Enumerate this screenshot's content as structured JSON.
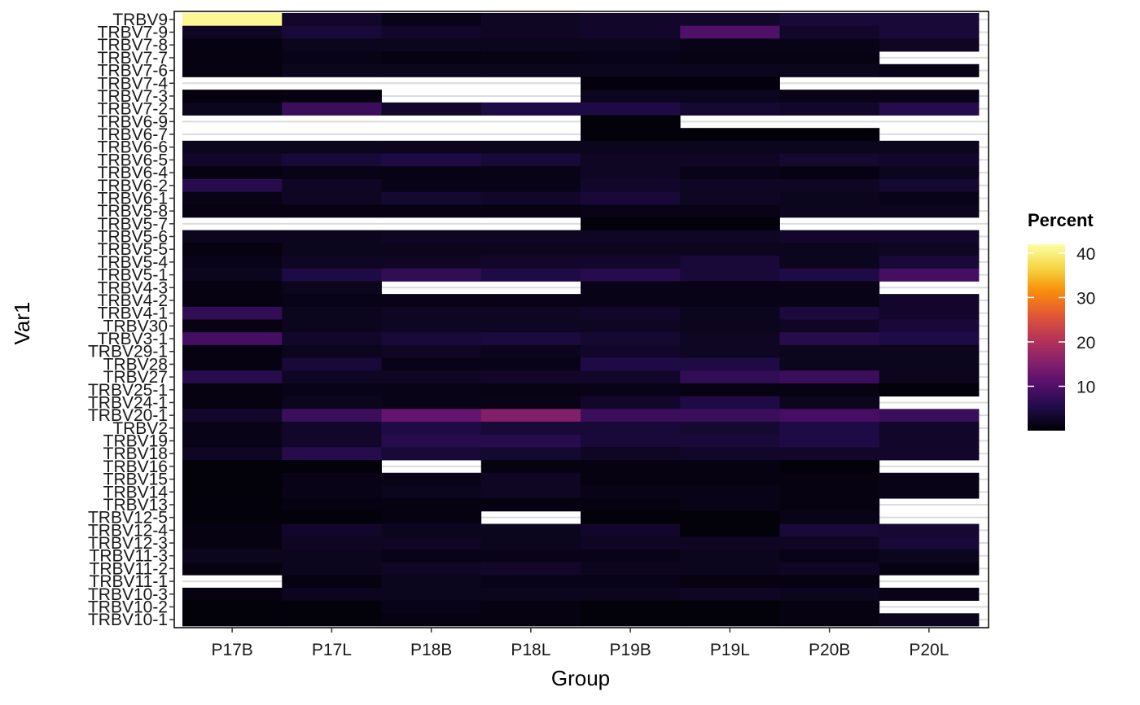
{
  "chart_data": {
    "type": "heatmap",
    "title": "",
    "xlabel": "Group",
    "ylabel": "Var1",
    "x_categories": [
      "P17B",
      "P17L",
      "P18B",
      "P18L",
      "P19B",
      "P19L",
      "P20B",
      "P20L"
    ],
    "y_categories": [
      "TRBV9",
      "TRBV7-9",
      "TRBV7-8",
      "TRBV7-7",
      "TRBV7-6",
      "TRBV7-4",
      "TRBV7-3",
      "TRBV7-2",
      "TRBV6-9",
      "TRBV6-7",
      "TRBV6-6",
      "TRBV6-5",
      "TRBV6-4",
      "TRBV6-2",
      "TRBV6-1",
      "TRBV5-8",
      "TRBV5-7",
      "TRBV5-6",
      "TRBV5-5",
      "TRBV5-4",
      "TRBV5-1",
      "TRBV4-3",
      "TRBV4-2",
      "TRBV4-1",
      "TRBV30",
      "TRBV3-1",
      "TRBV29-1",
      "TRBV28",
      "TRBV27",
      "TRBV25-1",
      "TRBV24-1",
      "TRBV20-1",
      "TRBV2",
      "TRBV19",
      "TRBV18",
      "TRBV16",
      "TRBV15",
      "TRBV14",
      "TRBV13",
      "TRBV12-5",
      "TRBV12-4",
      "TRBV12-3",
      "TRBV11-3",
      "TRBV11-2",
      "TRBV11-1",
      "TRBV10-3",
      "TRBV10-2",
      "TRBV10-1"
    ],
    "values": [
      [
        41,
        3,
        1.5,
        2.5,
        3,
        3,
        4,
        4
      ],
      [
        2.5,
        4,
        3,
        2.5,
        3,
        10,
        3,
        4
      ],
      [
        1,
        2,
        2,
        2,
        2,
        1.5,
        1.5,
        2.5
      ],
      [
        1,
        1.5,
        1,
        1.2,
        1.5,
        1.2,
        1.2,
        null
      ],
      [
        1,
        2,
        2,
        2,
        2,
        2,
        2,
        1.5
      ],
      [
        null,
        null,
        null,
        null,
        0.6,
        0.6,
        null,
        null
      ],
      [
        0.8,
        1,
        null,
        null,
        2,
        2,
        1.5,
        1.5
      ],
      [
        2,
        8,
        3,
        5,
        5,
        3.5,
        3,
        6
      ],
      [
        null,
        null,
        null,
        null,
        0.5,
        null,
        null,
        null
      ],
      [
        null,
        null,
        null,
        null,
        0.5,
        0.5,
        0.5,
        null
      ],
      [
        2,
        2,
        2,
        2,
        2,
        2,
        2,
        2
      ],
      [
        3,
        4,
        5,
        4,
        2.5,
        2.5,
        3.5,
        3
      ],
      [
        1,
        1.5,
        1.2,
        1.5,
        2.5,
        1.5,
        1,
        2
      ],
      [
        6,
        2.5,
        1.5,
        1.5,
        3,
        2.5,
        2.5,
        3.5
      ],
      [
        1.5,
        2.5,
        3.5,
        3,
        4,
        2.5,
        2,
        1.5
      ],
      [
        1,
        1,
        1,
        1,
        1.5,
        1.5,
        2,
        2
      ],
      [
        null,
        null,
        null,
        null,
        0.5,
        0.5,
        null,
        null
      ],
      [
        2,
        2,
        2.5,
        2.5,
        2.5,
        2.5,
        3,
        3
      ],
      [
        1,
        2,
        2,
        2,
        2,
        2,
        2,
        2.5
      ],
      [
        1.5,
        2.5,
        2.5,
        3,
        3,
        4,
        2,
        4
      ],
      [
        2,
        5,
        7,
        5,
        6,
        4,
        5,
        9
      ],
      [
        1,
        2,
        null,
        null,
        1.5,
        1.5,
        1.5,
        null
      ],
      [
        1,
        1.5,
        1.5,
        1.5,
        1.5,
        1.5,
        1.5,
        3
      ],
      [
        7,
        2,
        2.5,
        2.5,
        3,
        2,
        4.5,
        3
      ],
      [
        1,
        2,
        2.5,
        2.5,
        2.5,
        2,
        2.5,
        4
      ],
      [
        9,
        3,
        4,
        4.5,
        3.5,
        2.5,
        6,
        5
      ],
      [
        1,
        2,
        2.5,
        2,
        3,
        2.5,
        2,
        2
      ],
      [
        1,
        4,
        1.5,
        1.5,
        5,
        5,
        2,
        2
      ],
      [
        6,
        2.5,
        2.5,
        3,
        3,
        7,
        8,
        2
      ],
      [
        1,
        1.5,
        1.5,
        1.2,
        1.5,
        1,
        1.2,
        0.5
      ],
      [
        1,
        2,
        1.5,
        1.5,
        3,
        5,
        2,
        null
      ],
      [
        3,
        8,
        12,
        15,
        8,
        8,
        9,
        8
      ],
      [
        1.5,
        3,
        5,
        4,
        4,
        3.5,
        5,
        3
      ],
      [
        1.5,
        3,
        6,
        6,
        4,
        4,
        5,
        3
      ],
      [
        2.5,
        6,
        4,
        3.5,
        2.5,
        3,
        3,
        3
      ],
      [
        0.5,
        0.5,
        null,
        1,
        1,
        1,
        0.5,
        null
      ],
      [
        0.5,
        1.5,
        1.5,
        2.5,
        1,
        1,
        1,
        1.5
      ],
      [
        0.5,
        1.5,
        2,
        2.5,
        1.5,
        1.5,
        1,
        1.5
      ],
      [
        0.5,
        1,
        1,
        1,
        1,
        1.5,
        1,
        null
      ],
      [
        0.5,
        0.5,
        1,
        null,
        0.5,
        0.5,
        1.5,
        null
      ],
      [
        1,
        3,
        2,
        2,
        3,
        0.5,
        4,
        3.5
      ],
      [
        1,
        2.5,
        2.5,
        2,
        2.5,
        2.5,
        2.5,
        4
      ],
      [
        2,
        2,
        1.5,
        1.5,
        1.5,
        2,
        1.5,
        2
      ],
      [
        1,
        2,
        2.5,
        3,
        2,
        2,
        2.5,
        1
      ],
      [
        null,
        1,
        2,
        1.5,
        1.5,
        1,
        1,
        null
      ],
      [
        1,
        2,
        2,
        2,
        2,
        2.5,
        2,
        1.5
      ],
      [
        0.5,
        0.5,
        1.5,
        1,
        0.5,
        0.5,
        1,
        null
      ],
      [
        0.5,
        0.5,
        1,
        1,
        0.5,
        0.5,
        1,
        2
      ]
    ],
    "scale": {
      "min": 0,
      "max": 42,
      "palette": "inferno"
    },
    "legend": {
      "title": "Percent",
      "ticks": [
        10,
        20,
        30,
        40
      ],
      "position": "right"
    },
    "grid": false
  }
}
